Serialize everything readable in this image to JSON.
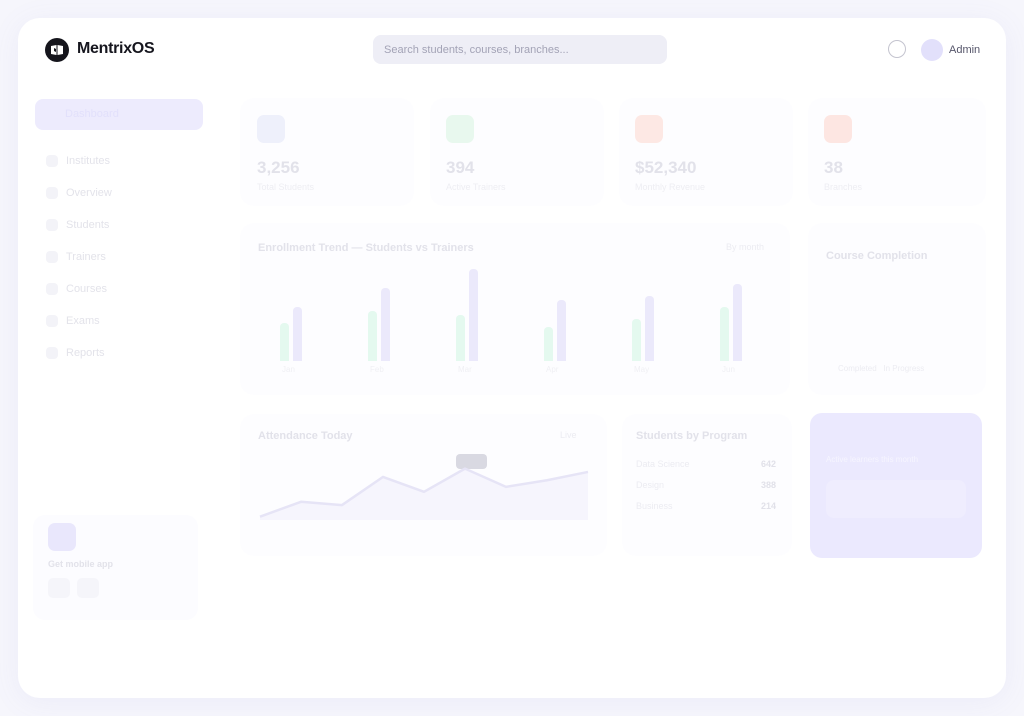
{
  "brand": {
    "name": "MentrixOS",
    "logo_icon": "open-book-icon"
  },
  "search": {
    "placeholder": "Search students, courses, branches..."
  },
  "user": {
    "name": "Admin"
  },
  "sidebar": {
    "active": "Dashboard",
    "items": [
      {
        "label": "Institutes"
      },
      {
        "label": "Overview"
      },
      {
        "label": "Students"
      },
      {
        "label": "Trainers"
      },
      {
        "label": "Courses"
      },
      {
        "label": "Exams"
      },
      {
        "label": "Reports"
      }
    ],
    "mobile": {
      "label": "Get mobile app"
    }
  },
  "stats": [
    {
      "value": "3,256",
      "label": "Total Students",
      "color": "#eef0fb"
    },
    {
      "value": "394",
      "label": "Active Trainers",
      "color": "#e8f8ee"
    },
    {
      "value": "$52,340",
      "label": "Monthly Revenue",
      "color": "#fde8e4"
    },
    {
      "value": "38",
      "label": "Branches",
      "color": "#fde6e2"
    }
  ],
  "enrollment": {
    "title": "Enrollment Trend — Students vs Trainers",
    "filter": "By month",
    "chart_data": {
      "type": "bar",
      "categories": [
        "Jan",
        "Feb",
        "Mar",
        "Apr",
        "May",
        "Jun"
      ],
      "series": [
        {
          "values": [
            40,
            52,
            48,
            35,
            44,
            56
          ]
        },
        {
          "values": [
            56,
            76,
            96,
            64,
            68,
            80
          ]
        }
      ]
    }
  },
  "completion": {
    "title": "Course Completion",
    "legend": [
      "Completed",
      "In Progress"
    ]
  },
  "attendance": {
    "title": "Attendance Today",
    "filter": "Live",
    "chart_data": {
      "type": "area",
      "values": [
        4,
        22,
        18,
        52,
        34,
        62,
        40,
        48,
        58
      ]
    }
  },
  "programs": {
    "title": "Students by Program",
    "rows": [
      {
        "name": "Data Science",
        "value": "642"
      },
      {
        "name": "Design",
        "value": "388"
      },
      {
        "name": "Business",
        "value": "214"
      }
    ]
  },
  "promo": {
    "subtitle": "Active learners this month"
  }
}
